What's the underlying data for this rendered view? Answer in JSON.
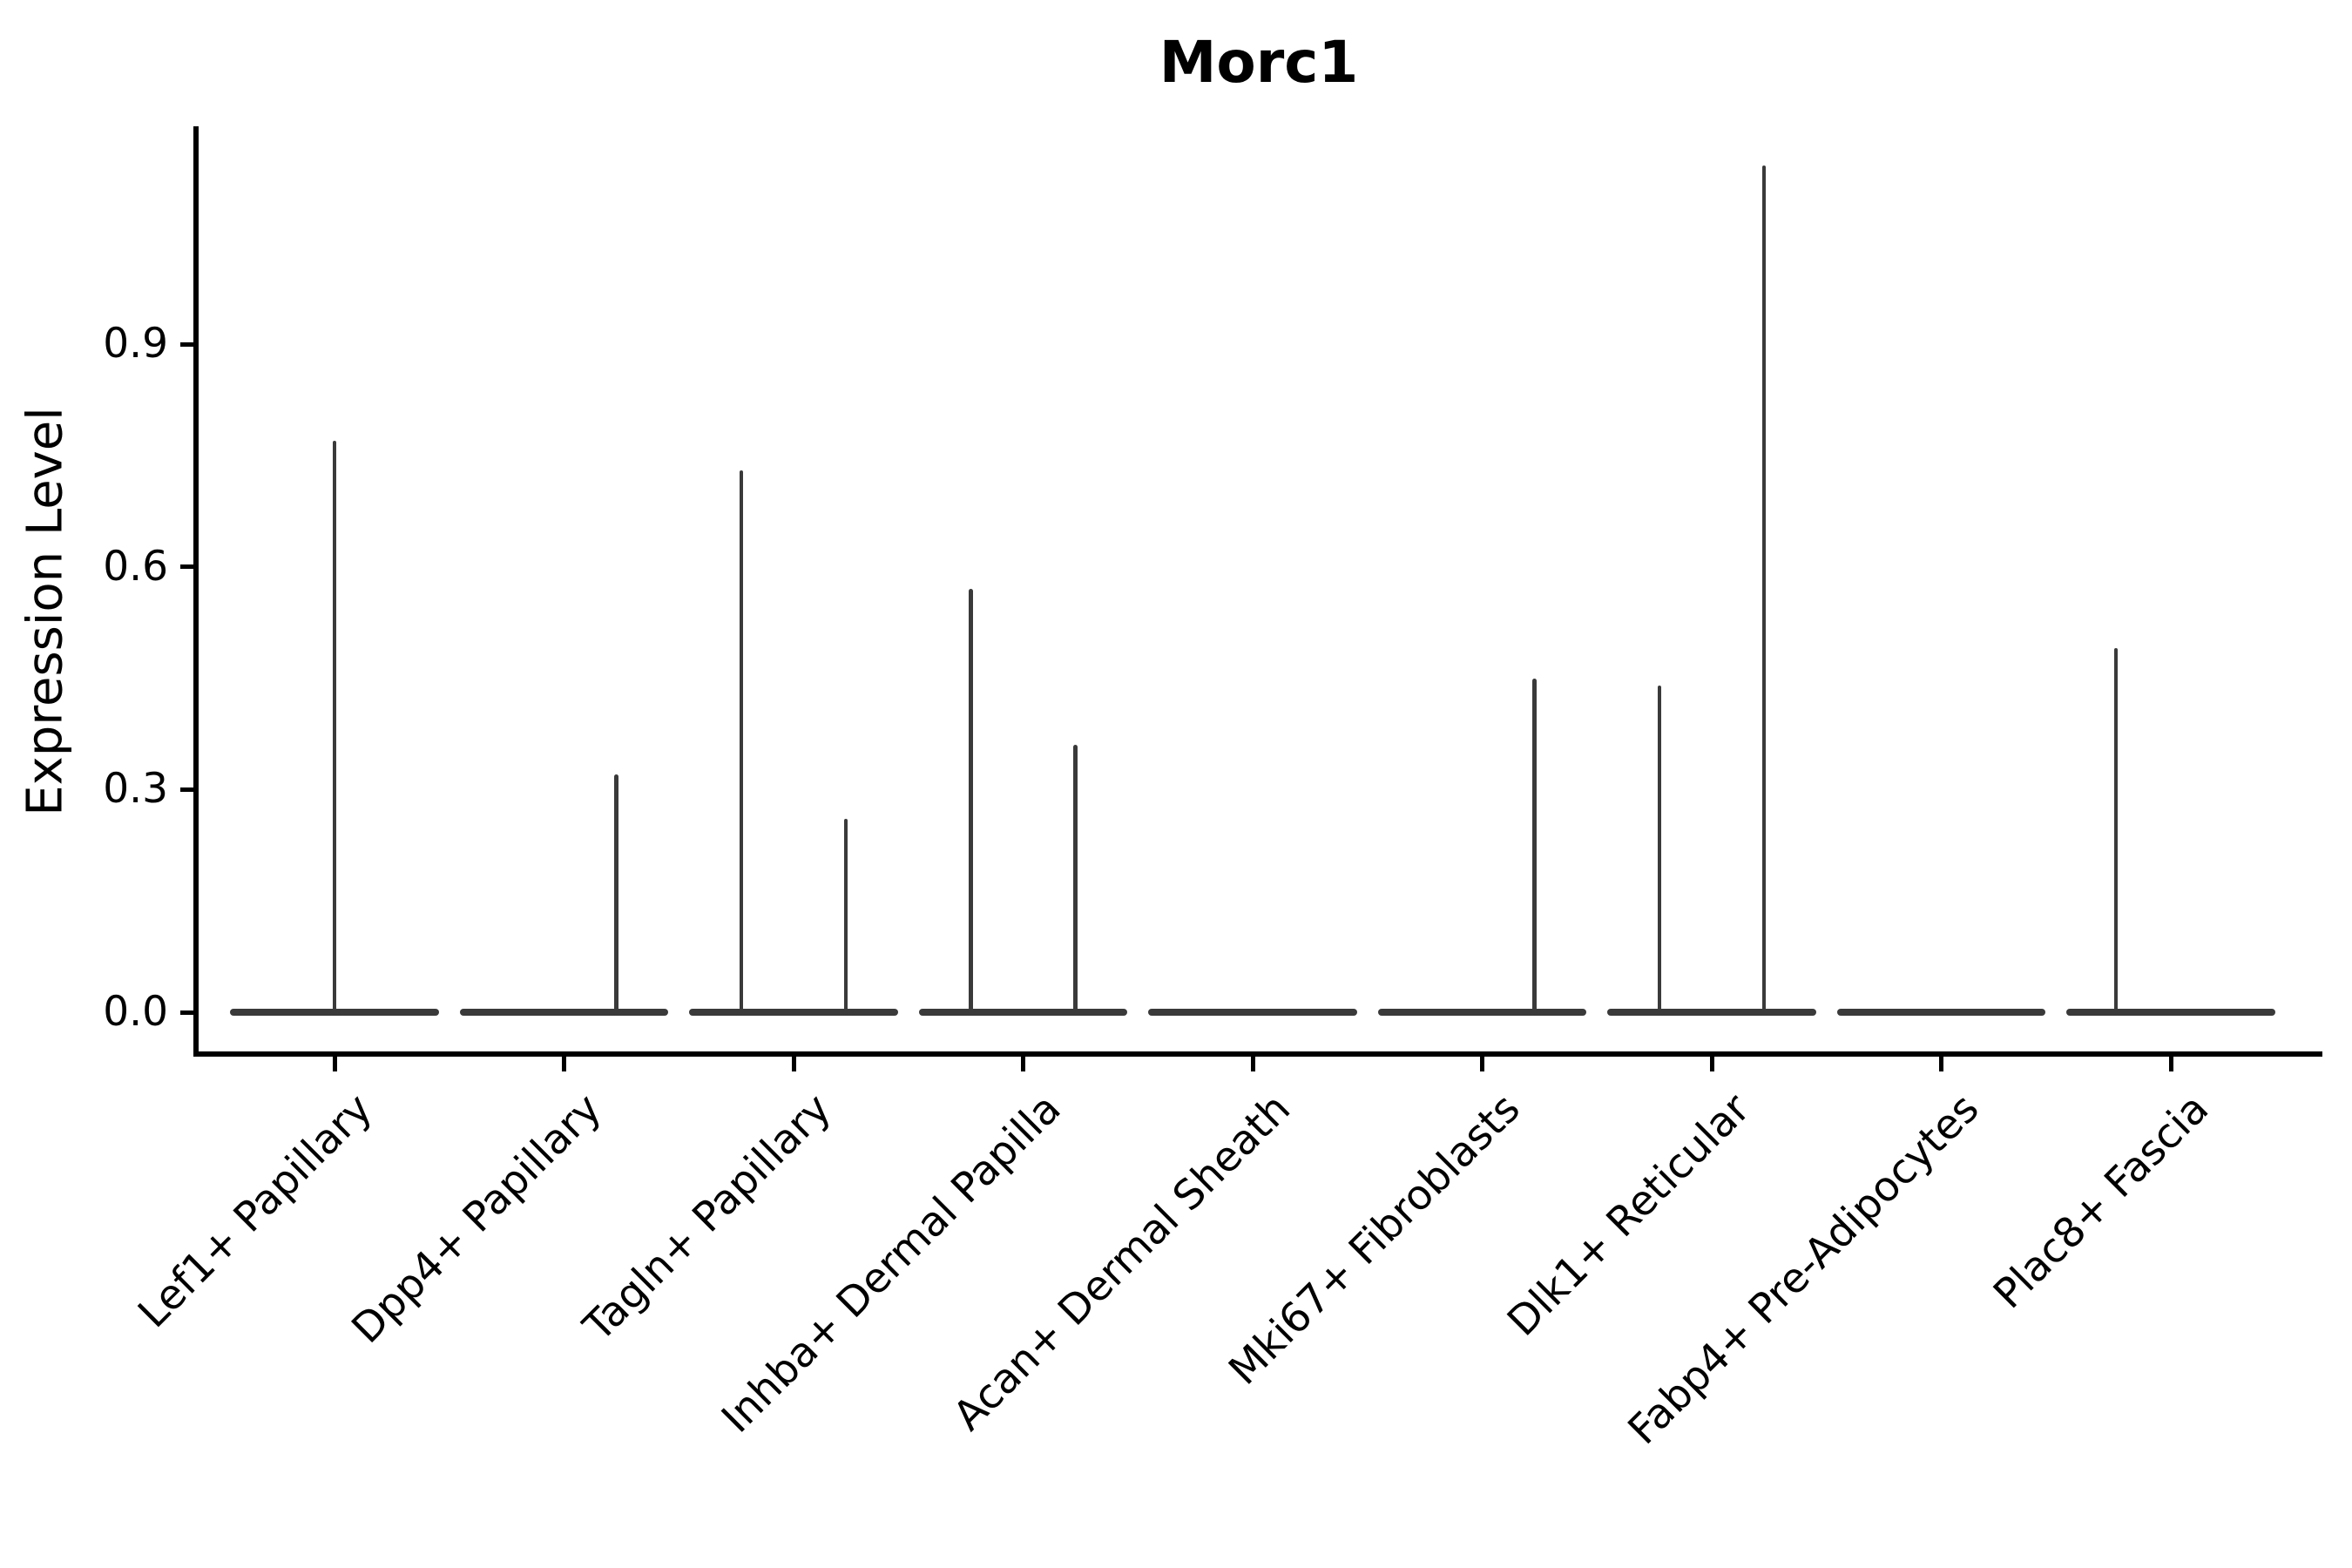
{
  "chart_data": {
    "type": "violin",
    "title": "Morc1",
    "ylabel": "Expression Level",
    "yticks": [
      {
        "label": "0.0",
        "value": 0.0
      },
      {
        "label": "0.3",
        "value": 0.3
      },
      {
        "label": "0.6",
        "value": 0.6
      },
      {
        "label": "0.9",
        "value": 0.9
      }
    ],
    "ylim": [
      0.0,
      1.19
    ],
    "grid": false,
    "legend": "none",
    "categories": [
      {
        "label": "Lef1+ Papillary",
        "spikes": [
          {
            "offset": 0.0,
            "max": 0.77
          }
        ]
      },
      {
        "label": "Dpp4+ Papillary",
        "spikes": [
          {
            "offset": 0.228,
            "max": 0.32
          }
        ]
      },
      {
        "label": "Tagln+ Papillary",
        "spikes": [
          {
            "offset": -0.228,
            "max": 0.73
          },
          {
            "offset": 0.228,
            "max": 0.26
          }
        ]
      },
      {
        "label": "Inhba+ Dermal Papilla",
        "spikes": [
          {
            "offset": -0.228,
            "max": 0.57
          },
          {
            "offset": 0.228,
            "max": 0.36
          }
        ]
      },
      {
        "label": "Acan+ Dermal Sheath",
        "spikes": []
      },
      {
        "label": "Mki67+ Fibroblasts",
        "spikes": [
          {
            "offset": 0.228,
            "max": 0.45
          }
        ]
      },
      {
        "label": "Dlk1+ Reticular",
        "spikes": [
          {
            "offset": -0.228,
            "max": 0.44
          },
          {
            "offset": 0.228,
            "max": 1.14
          }
        ]
      },
      {
        "label": "Fabp4+ Pre-Adipocytes",
        "spikes": []
      },
      {
        "label": "Plac8+ Fascia",
        "spikes": [
          {
            "offset": -0.24,
            "max": 0.49
          }
        ]
      }
    ],
    "violin_base_halfwidth": 0.455,
    "colors": {
      "violin": "#3a3a3a",
      "axis": "#000000",
      "background": "#ffffff"
    }
  }
}
